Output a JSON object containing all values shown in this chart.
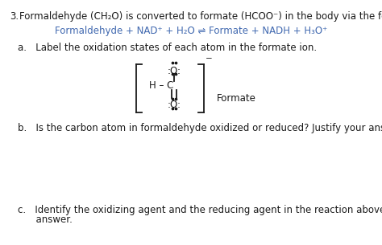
{
  "bg_color": "#ffffff",
  "text_color": "#1a1a1a",
  "reaction_color": "#4169b0",
  "title_num": "3.",
  "title_rest": "Formaldehyde (CH₂O) is converted to formate (HCOO⁻) in the body via the following reaction:",
  "reaction": "Formaldehyde + NAD⁺ + H₂O ⇌ Formate + NADH + H₃O⁺",
  "qa": "a.   Label the oxidation states of each atom in the formate ion.",
  "qb": "b.   Is the carbon atom in formaldehyde oxidized or reduced? Justify your answer.",
  "qc1": "c.   Identify the oxidizing agent and the reducing agent in the reaction above. Justify your",
  "qc2": "      answer.",
  "formate_label": "Formate",
  "fs": 8.5,
  "fs_lewis": 8.5
}
